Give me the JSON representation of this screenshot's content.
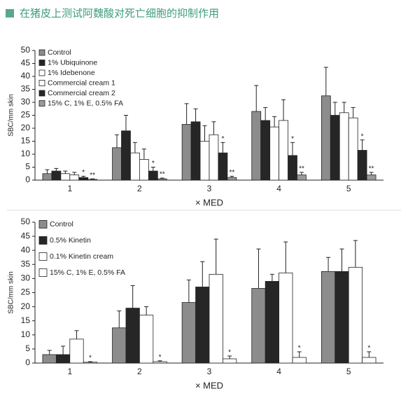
{
  "header": {
    "title": "在猪皮上测试阿魏酸对死亡细胞的抑制作用"
  },
  "chart_data": [
    {
      "type": "bar",
      "x_label": "× MED",
      "y_label": "SBC/mm skin",
      "categories": [
        "1",
        "2",
        "3",
        "4",
        "5"
      ],
      "ylim": [
        0,
        50
      ],
      "yticks": [
        0,
        5,
        10,
        15,
        20,
        25,
        30,
        35,
        40,
        45,
        50
      ],
      "legend": "top-left",
      "series": [
        {
          "name": "Control",
          "color": "#8c8c8c",
          "values": [
            2.5,
            12.5,
            21.5,
            26.5,
            32.5
          ],
          "errors": [
            1.5,
            5,
            8,
            10,
            11
          ],
          "annotations": [
            null,
            null,
            null,
            null,
            null
          ]
        },
        {
          "name": "1% Ubiquinone",
          "color": "#262626",
          "values": [
            3.5,
            19,
            22.5,
            23,
            25
          ],
          "errors": [
            1,
            6,
            5,
            5,
            5
          ],
          "annotations": [
            null,
            null,
            null,
            null,
            null
          ]
        },
        {
          "name": "1% Idebenone",
          "color": "#ffffff",
          "values": [
            2.5,
            10.5,
            15,
            20.5,
            26
          ],
          "errors": [
            1,
            4,
            6,
            4,
            4
          ],
          "annotations": [
            null,
            null,
            null,
            null,
            null
          ]
        },
        {
          "name": "Commercial cream 1",
          "color": "#ffffff",
          "values": [
            2,
            8,
            17.5,
            23,
            24
          ],
          "errors": [
            1,
            4,
            5,
            8,
            4
          ],
          "annotations": [
            null,
            null,
            null,
            null,
            null
          ]
        },
        {
          "name": "Commercial cream 2",
          "color": "#262626",
          "values": [
            1,
            3.5,
            10.5,
            9.5,
            11.5
          ],
          "errors": [
            0.5,
            1.5,
            4,
            5,
            4
          ],
          "annotations": [
            "*",
            "*",
            "*",
            "*",
            "*"
          ]
        },
        {
          "name": "15% C, 1% E, 0.5% FA",
          "color": "#9a9a9a",
          "values": [
            0.3,
            0.5,
            1,
            2,
            2
          ],
          "errors": [
            0.2,
            0.3,
            0.5,
            1,
            1
          ],
          "annotations": [
            "**",
            "**",
            "**",
            "**",
            "**"
          ]
        }
      ]
    },
    {
      "type": "bar",
      "x_label": "× MED",
      "y_label": "SBC/mm skin",
      "categories": [
        "1",
        "2",
        "3",
        "4",
        "5"
      ],
      "ylim": [
        0,
        50
      ],
      "yticks": [
        0,
        5,
        10,
        15,
        20,
        25,
        30,
        35,
        40,
        45,
        50
      ],
      "legend": "top-left",
      "series": [
        {
          "name": "Control",
          "color": "#8c8c8c",
          "values": [
            3,
            12.5,
            21.5,
            26.5,
            32.5
          ],
          "errors": [
            1.5,
            6,
            8,
            14,
            5
          ],
          "annotations": [
            null,
            null,
            null,
            null,
            null
          ]
        },
        {
          "name": "0.5% Kinetin",
          "color": "#262626",
          "values": [
            3,
            19.5,
            27,
            29,
            32.5
          ],
          "errors": [
            3,
            8,
            9,
            2.5,
            8
          ],
          "annotations": [
            null,
            null,
            null,
            null,
            null
          ]
        },
        {
          "name": "0.1% Kinetin cream",
          "color": "#ffffff",
          "values": [
            8.5,
            17,
            31.5,
            32,
            34
          ],
          "errors": [
            3,
            3,
            12.5,
            11,
            9.5
          ],
          "annotations": [
            null,
            null,
            null,
            null,
            null
          ]
        },
        {
          "name": "15% C, 1% E, 0.5% FA",
          "color": "#ffffff",
          "values": [
            0.3,
            0.5,
            1.5,
            2,
            2
          ],
          "errors": [
            0.2,
            0.3,
            1,
            2,
            2
          ],
          "annotations": [
            "*",
            "*",
            "*",
            "*",
            "*"
          ]
        }
      ]
    }
  ]
}
